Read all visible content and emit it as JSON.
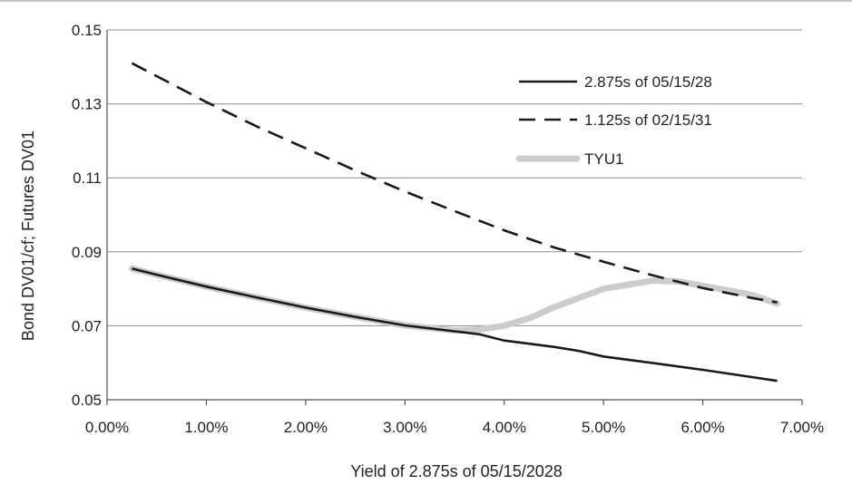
{
  "chart_data": {
    "type": "line",
    "title": "",
    "xlabel": "Yield of 2.875s of 05/15/2028",
    "ylabel": "Bond DV01/cf; Futures DV01",
    "xlim": [
      0.0,
      7.0
    ],
    "ylim": [
      0.05,
      0.15
    ],
    "x_ticks": [
      0,
      1,
      2,
      3,
      4,
      5,
      6,
      7
    ],
    "x_tick_labels": [
      "0.00%",
      "1.00%",
      "2.00%",
      "3.00%",
      "4.00%",
      "5.00%",
      "6.00%",
      "7.00%"
    ],
    "y_ticks": [
      0.05,
      0.07,
      0.09,
      0.11,
      0.13,
      0.15
    ],
    "y_tick_labels": [
      "0.05",
      "0.07",
      "0.09",
      "0.11",
      "0.13",
      "0.15"
    ],
    "grid": "horizontal",
    "legend_position": "top-right",
    "series": [
      {
        "name": "2.875s of 05/15/28",
        "style": "solid",
        "color": "#1a1a1a",
        "x": [
          0.25,
          0.5,
          1.0,
          1.5,
          2.0,
          2.5,
          3.0,
          3.5,
          3.75,
          4.0,
          4.5,
          4.75,
          5.0,
          5.5,
          6.0,
          6.5,
          6.75
        ],
        "y": [
          0.0855,
          0.0838,
          0.0806,
          0.0777,
          0.0749,
          0.0724,
          0.0701,
          0.0685,
          0.0677,
          0.066,
          0.0643,
          0.0632,
          0.0617,
          0.0599,
          0.0581,
          0.0561,
          0.0551
        ]
      },
      {
        "name": "1.125s of 02/15/31",
        "style": "dashed",
        "color": "#1a1a1a",
        "x": [
          0.25,
          0.5,
          1.0,
          1.5,
          2.0,
          2.5,
          3.0,
          3.5,
          4.0,
          4.5,
          5.0,
          5.5,
          6.0,
          6.5,
          6.75
        ],
        "y": [
          0.141,
          0.1375,
          0.1305,
          0.124,
          0.118,
          0.112,
          0.1063,
          0.101,
          0.0958,
          0.0912,
          0.0873,
          0.0836,
          0.0802,
          0.0775,
          0.0763
        ]
      },
      {
        "name": "TYU1",
        "style": "thick",
        "color": "#cccccc",
        "x": [
          0.25,
          0.5,
          1.0,
          1.5,
          2.0,
          2.5,
          3.0,
          3.5,
          3.75,
          4.0,
          4.25,
          4.5,
          5.0,
          5.5,
          5.75,
          6.0,
          6.5,
          6.75
        ],
        "y": [
          0.0855,
          0.0838,
          0.0806,
          0.0777,
          0.0749,
          0.0724,
          0.0701,
          0.0687,
          0.069,
          0.07,
          0.072,
          0.075,
          0.08,
          0.0822,
          0.082,
          0.0808,
          0.0783,
          0.076
        ]
      }
    ]
  }
}
